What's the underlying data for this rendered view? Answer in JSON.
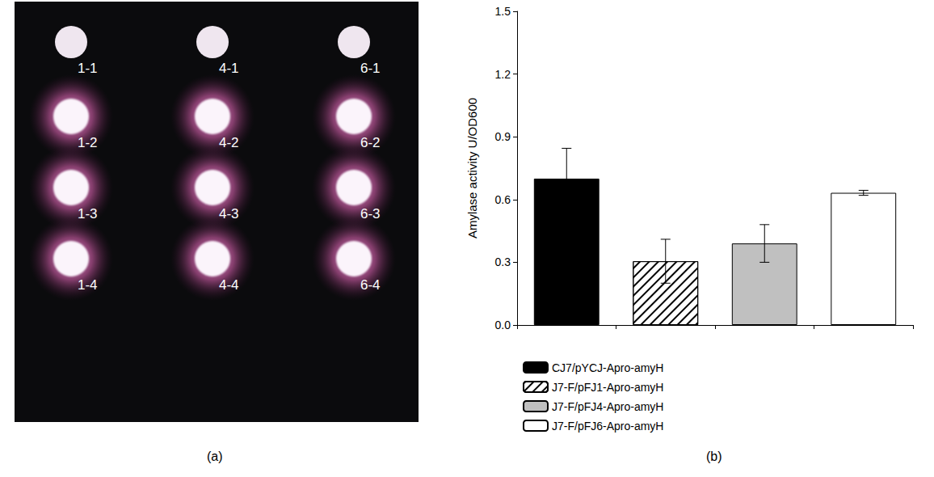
{
  "plate": {
    "panel_label": "(a)",
    "rows": [
      {
        "labels": [
          "1-1",
          "4-1",
          "6-1"
        ],
        "halo": false
      },
      {
        "labels": [
          "1-2",
          "4-2",
          "6-2"
        ],
        "halo": true
      },
      {
        "labels": [
          "1-3",
          "4-3",
          "6-3"
        ],
        "halo": true
      },
      {
        "labels": [
          "1-4",
          "4-4",
          "6-4"
        ],
        "halo": true
      }
    ]
  },
  "chart_data": {
    "type": "bar",
    "panel_label": "(b)",
    "y_label": "Amylase activity U/OD600",
    "categories": [
      null,
      null,
      null,
      null
    ],
    "series": [
      {
        "name": "CJ7/pYCJ-Apro-amyH",
        "color": "#000000",
        "values": [
          0.7,
          null,
          null,
          null
        ],
        "errors": [
          0.145,
          null,
          null,
          null
        ]
      },
      {
        "name": "J7-F/pFJ1-Apro-amyH",
        "color": "#ffffff",
        "values": [
          null,
          0.305,
          null,
          null
        ],
        "errors": [
          null,
          0.105,
          null,
          null
        ]
      },
      {
        "name": "J7-F/pFJ4-Apro-amyH",
        "color": "#c0c0c0",
        "values": [
          null,
          null,
          0.39,
          null
        ],
        "errors": [
          null,
          null,
          0.09,
          null
        ]
      },
      {
        "name": "J7-F/pFJ6-Apro-amyH",
        "color": "#ffffff",
        "values": [
          null,
          null,
          null,
          0.632
        ],
        "errors": [
          null,
          null,
          null,
          0.012
        ]
      }
    ],
    "ylim": [
      0,
      1.5
    ],
    "yticks": [
      {
        "value": 0,
        "label": "0.0"
      },
      0.3,
      0.6,
      0.9,
      1.2,
      1.5
    ],
    "grid": false,
    "legend": "bottom"
  }
}
